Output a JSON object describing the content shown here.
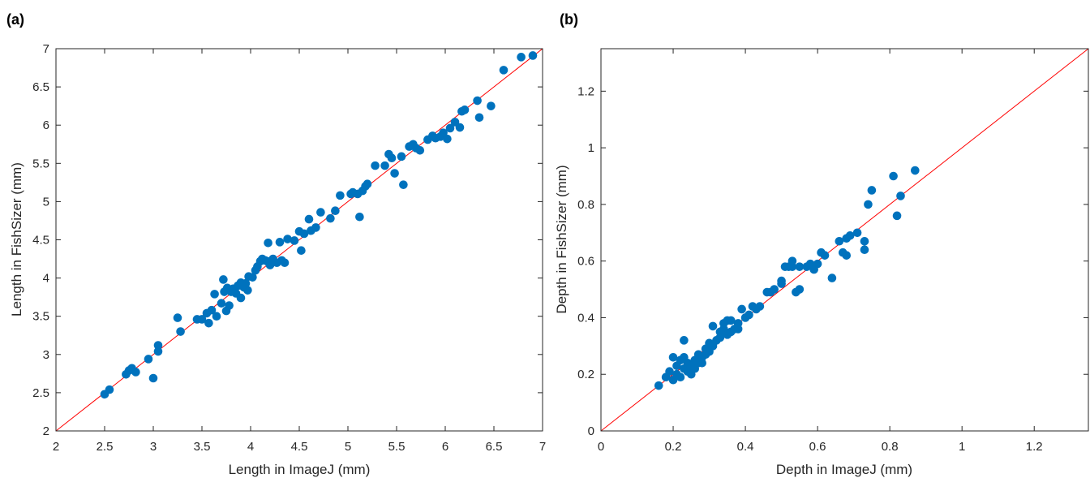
{
  "chart_data": [
    {
      "panel_label": "(a)",
      "type": "scatter",
      "title": "",
      "xlabel": "Length in ImageJ (mm)",
      "ylabel": "Length in FishSizer (mm)",
      "xlim": [
        2,
        7
      ],
      "ylim": [
        2,
        7
      ],
      "xticks": [
        2,
        2.5,
        3,
        3.5,
        4,
        4.5,
        5,
        5.5,
        6,
        6.5,
        7
      ],
      "yticks": [
        2,
        2.5,
        3,
        3.5,
        4,
        4.5,
        5,
        5.5,
        6,
        6.5,
        7
      ],
      "xtick_labels": [
        "2",
        "2.5",
        "3",
        "3.5",
        "4",
        "4.5",
        "5",
        "5.5",
        "6",
        "6.5",
        "7"
      ],
      "ytick_labels": [
        "2",
        "2.5",
        "3",
        "3.5",
        "4",
        "4.5",
        "5",
        "5.5",
        "6",
        "6.5",
        "7"
      ],
      "grid": false,
      "marker_color": "#0072BD",
      "reference_line": {
        "type": "identity",
        "from": [
          2,
          2
        ],
        "to": [
          7,
          7
        ],
        "color": "#FF0000"
      },
      "points": [
        [
          2.5,
          2.48
        ],
        [
          2.55,
          2.54
        ],
        [
          2.72,
          2.74
        ],
        [
          2.75,
          2.79
        ],
        [
          2.78,
          2.82
        ],
        [
          2.82,
          2.77
        ],
        [
          2.95,
          2.94
        ],
        [
          3.0,
          2.69
        ],
        [
          3.05,
          3.12
        ],
        [
          3.05,
          3.04
        ],
        [
          3.25,
          3.48
        ],
        [
          3.28,
          3.3
        ],
        [
          3.45,
          3.46
        ],
        [
          3.5,
          3.46
        ],
        [
          3.55,
          3.54
        ],
        [
          3.57,
          3.41
        ],
        [
          3.6,
          3.58
        ],
        [
          3.63,
          3.79
        ],
        [
          3.65,
          3.5
        ],
        [
          3.7,
          3.67
        ],
        [
          3.72,
          3.98
        ],
        [
          3.73,
          3.82
        ],
        [
          3.75,
          3.57
        ],
        [
          3.76,
          3.87
        ],
        [
          3.78,
          3.64
        ],
        [
          3.8,
          3.82
        ],
        [
          3.82,
          3.86
        ],
        [
          3.85,
          3.8
        ],
        [
          3.87,
          3.9
        ],
        [
          3.9,
          3.94
        ],
        [
          3.9,
          3.74
        ],
        [
          3.93,
          3.88
        ],
        [
          3.95,
          3.93
        ],
        [
          3.97,
          3.84
        ],
        [
          3.98,
          4.02
        ],
        [
          4.02,
          4.01
        ],
        [
          4.05,
          4.1
        ],
        [
          4.07,
          4.15
        ],
        [
          4.1,
          4.22
        ],
        [
          4.12,
          4.25
        ],
        [
          4.15,
          4.23
        ],
        [
          4.17,
          4.22
        ],
        [
          4.18,
          4.46
        ],
        [
          4.2,
          4.17
        ],
        [
          4.23,
          4.25
        ],
        [
          4.27,
          4.2
        ],
        [
          4.3,
          4.47
        ],
        [
          4.32,
          4.23
        ],
        [
          4.35,
          4.2
        ],
        [
          4.38,
          4.51
        ],
        [
          4.45,
          4.49
        ],
        [
          4.5,
          4.61
        ],
        [
          4.52,
          4.36
        ],
        [
          4.55,
          4.58
        ],
        [
          4.6,
          4.77
        ],
        [
          4.62,
          4.62
        ],
        [
          4.67,
          4.66
        ],
        [
          4.72,
          4.86
        ],
        [
          4.82,
          4.78
        ],
        [
          4.87,
          4.88
        ],
        [
          4.92,
          5.08
        ],
        [
          5.03,
          5.1
        ],
        [
          5.05,
          5.12
        ],
        [
          5.1,
          5.1
        ],
        [
          5.12,
          4.8
        ],
        [
          5.15,
          5.14
        ],
        [
          5.18,
          5.2
        ],
        [
          5.2,
          5.23
        ],
        [
          5.28,
          5.47
        ],
        [
          5.38,
          5.47
        ],
        [
          5.42,
          5.62
        ],
        [
          5.45,
          5.57
        ],
        [
          5.48,
          5.37
        ],
        [
          5.55,
          5.59
        ],
        [
          5.57,
          5.22
        ],
        [
          5.63,
          5.72
        ],
        [
          5.67,
          5.75
        ],
        [
          5.7,
          5.7
        ],
        [
          5.74,
          5.67
        ],
        [
          5.82,
          5.81
        ],
        [
          5.87,
          5.86
        ],
        [
          5.9,
          5.83
        ],
        [
          5.95,
          5.85
        ],
        [
          5.98,
          5.9
        ],
        [
          6.02,
          5.82
        ],
        [
          6.05,
          5.96
        ],
        [
          6.1,
          6.04
        ],
        [
          6.15,
          5.97
        ],
        [
          6.17,
          6.18
        ],
        [
          6.2,
          6.2
        ],
        [
          6.33,
          6.32
        ],
        [
          6.35,
          6.1
        ],
        [
          6.47,
          6.25
        ],
        [
          6.6,
          6.72
        ],
        [
          6.78,
          6.89
        ],
        [
          6.9,
          6.91
        ]
      ]
    },
    {
      "panel_label": "(b)",
      "type": "scatter",
      "title": "",
      "xlabel": "Depth in ImageJ (mm)",
      "ylabel": "Depth in FishSizer (mm)",
      "xlim": [
        0,
        1.35
      ],
      "ylim": [
        0,
        1.35
      ],
      "xticks": [
        0,
        0.2,
        0.4,
        0.6,
        0.8,
        1,
        1.2
      ],
      "yticks": [
        0,
        0.2,
        0.4,
        0.6,
        0.8,
        1,
        1.2
      ],
      "xtick_labels": [
        "0",
        "0.2",
        "0.4",
        "0.6",
        "0.8",
        "1",
        "1.2"
      ],
      "ytick_labels": [
        "0",
        "0.2",
        "0.4",
        "0.6",
        "0.8",
        "1",
        "1.2"
      ],
      "grid": false,
      "marker_color": "#0072BD",
      "reference_line": {
        "type": "identity",
        "from": [
          0,
          0
        ],
        "to": [
          1.35,
          1.35
        ],
        "color": "#FF0000"
      },
      "points": [
        [
          0.16,
          0.16
        ],
        [
          0.18,
          0.19
        ],
        [
          0.19,
          0.21
        ],
        [
          0.2,
          0.18
        ],
        [
          0.2,
          0.26
        ],
        [
          0.21,
          0.2
        ],
        [
          0.21,
          0.23
        ],
        [
          0.22,
          0.25
        ],
        [
          0.22,
          0.19
        ],
        [
          0.23,
          0.22
        ],
        [
          0.23,
          0.26
        ],
        [
          0.23,
          0.32
        ],
        [
          0.24,
          0.21
        ],
        [
          0.24,
          0.24
        ],
        [
          0.25,
          0.2
        ],
        [
          0.25,
          0.23
        ],
        [
          0.26,
          0.25
        ],
        [
          0.26,
          0.22
        ],
        [
          0.27,
          0.27
        ],
        [
          0.27,
          0.24
        ],
        [
          0.28,
          0.26
        ],
        [
          0.28,
          0.24
        ],
        [
          0.29,
          0.29
        ],
        [
          0.29,
          0.27
        ],
        [
          0.3,
          0.28
        ],
        [
          0.3,
          0.31
        ],
        [
          0.31,
          0.3
        ],
        [
          0.31,
          0.37
        ],
        [
          0.32,
          0.32
        ],
        [
          0.33,
          0.33
        ],
        [
          0.33,
          0.35
        ],
        [
          0.34,
          0.38
        ],
        [
          0.34,
          0.36
        ],
        [
          0.35,
          0.39
        ],
        [
          0.35,
          0.34
        ],
        [
          0.36,
          0.39
        ],
        [
          0.36,
          0.35
        ],
        [
          0.37,
          0.36
        ],
        [
          0.38,
          0.36
        ],
        [
          0.38,
          0.38
        ],
        [
          0.39,
          0.43
        ],
        [
          0.4,
          0.4
        ],
        [
          0.41,
          0.41
        ],
        [
          0.42,
          0.44
        ],
        [
          0.43,
          0.43
        ],
        [
          0.44,
          0.44
        ],
        [
          0.46,
          0.49
        ],
        [
          0.47,
          0.49
        ],
        [
          0.48,
          0.5
        ],
        [
          0.5,
          0.53
        ],
        [
          0.5,
          0.52
        ],
        [
          0.51,
          0.58
        ],
        [
          0.52,
          0.58
        ],
        [
          0.53,
          0.58
        ],
        [
          0.53,
          0.6
        ],
        [
          0.54,
          0.49
        ],
        [
          0.55,
          0.5
        ],
        [
          0.55,
          0.58
        ],
        [
          0.57,
          0.58
        ],
        [
          0.58,
          0.59
        ],
        [
          0.59,
          0.57
        ],
        [
          0.6,
          0.59
        ],
        [
          0.61,
          0.63
        ],
        [
          0.62,
          0.62
        ],
        [
          0.64,
          0.54
        ],
        [
          0.66,
          0.67
        ],
        [
          0.67,
          0.63
        ],
        [
          0.68,
          0.68
        ],
        [
          0.68,
          0.62
        ],
        [
          0.69,
          0.69
        ],
        [
          0.71,
          0.7
        ],
        [
          0.73,
          0.64
        ],
        [
          0.73,
          0.67
        ],
        [
          0.74,
          0.8
        ],
        [
          0.75,
          0.85
        ],
        [
          0.81,
          0.9
        ],
        [
          0.82,
          0.76
        ],
        [
          0.83,
          0.83
        ],
        [
          0.87,
          0.92
        ]
      ]
    }
  ]
}
